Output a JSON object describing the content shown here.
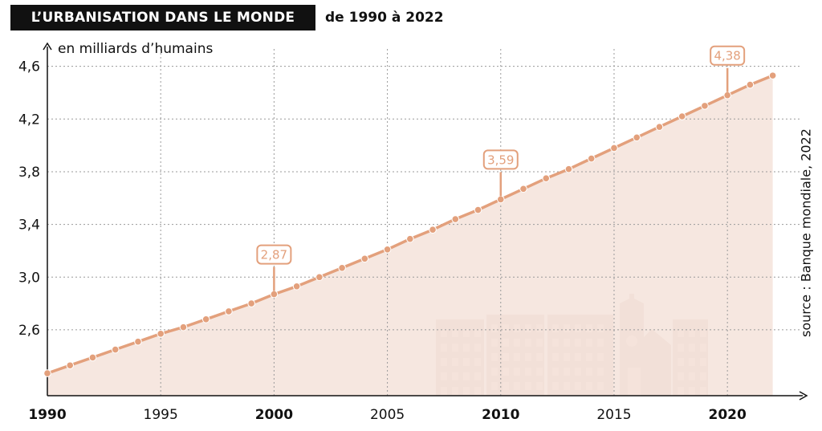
{
  "header": {
    "title": "L’URBANISATION DANS LE MONDE",
    "subtitle": "de 1990 à 2022"
  },
  "source": "source : Banque mondiale, 2022",
  "colors": {
    "line": "#e3a07c",
    "area": "#f5e3da",
    "grid": "#9a9a9a",
    "title_bg": "#111111",
    "decor": "#e2cec5"
  },
  "chart_data": {
    "type": "area",
    "title": "L’URBANISATION DANS LE MONDE de 1990 à 2022",
    "ylabel": "en milliards d’humains",
    "xlabel": "",
    "xlim": [
      1990,
      2023.5
    ],
    "ylim": [
      2.1,
      4.75
    ],
    "grid": true,
    "x_ticks": [
      {
        "value": 1990,
        "label": "1990",
        "bold": true
      },
      {
        "value": 1995,
        "label": "1995",
        "bold": false
      },
      {
        "value": 2000,
        "label": "2000",
        "bold": true
      },
      {
        "value": 2005,
        "label": "2005",
        "bold": false
      },
      {
        "value": 2010,
        "label": "2010",
        "bold": true
      },
      {
        "value": 2015,
        "label": "2015",
        "bold": false
      },
      {
        "value": 2020,
        "label": "2020",
        "bold": true
      }
    ],
    "y_ticks": [
      {
        "value": 2.6,
        "label": "2,6"
      },
      {
        "value": 3.0,
        "label": "3,0"
      },
      {
        "value": 3.4,
        "label": "3,4"
      },
      {
        "value": 3.8,
        "label": "3,8"
      },
      {
        "value": 4.2,
        "label": "4,2"
      },
      {
        "value": 4.6,
        "label": "4,6"
      }
    ],
    "series": [
      {
        "x": [
          1990,
          1991,
          1992,
          1993,
          1994,
          1995,
          1996,
          1997,
          1998,
          1999,
          2000,
          2001,
          2002,
          2003,
          2004,
          2005,
          2006,
          2007,
          2008,
          2009,
          2010,
          2011,
          2012,
          2013,
          2014,
          2015,
          2016,
          2017,
          2018,
          2019,
          2020,
          2021,
          2022
        ],
        "values": [
          2.27,
          2.33,
          2.39,
          2.45,
          2.51,
          2.57,
          2.62,
          2.68,
          2.74,
          2.8,
          2.87,
          2.93,
          3.0,
          3.07,
          3.14,
          3.21,
          3.29,
          3.36,
          3.44,
          3.51,
          3.59,
          3.67,
          3.75,
          3.82,
          3.9,
          3.98,
          4.06,
          4.14,
          4.22,
          4.3,
          4.38,
          4.46,
          4.53
        ]
      }
    ],
    "annotations": [
      {
        "x": 2000,
        "y": 2.87,
        "label": "2,87"
      },
      {
        "x": 2010,
        "y": 3.59,
        "label": "3,59"
      },
      {
        "x": 2020,
        "y": 4.38,
        "label": "4,38"
      }
    ]
  }
}
